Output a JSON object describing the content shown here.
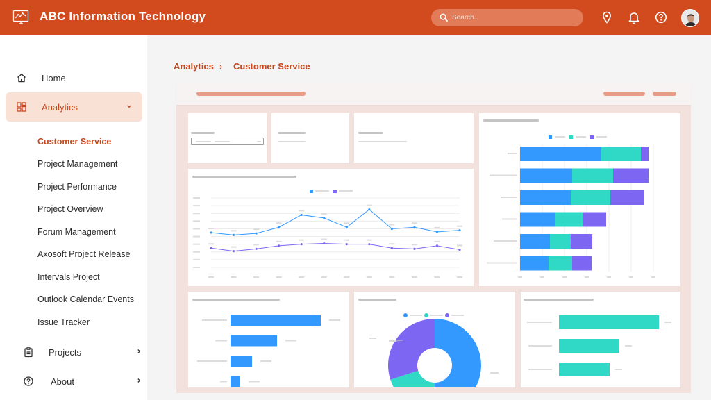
{
  "header": {
    "title": "ABC Information Technology",
    "search_placeholder": "Search..",
    "brand_color": "#d14b1f",
    "icons": [
      "location-pin-icon",
      "bell-icon",
      "help-circle-icon"
    ]
  },
  "sidebar": {
    "items": [
      {
        "label": "Home",
        "icon": "home-icon"
      },
      {
        "label": "Analytics",
        "icon": "dashboard-icon",
        "active": true
      },
      {
        "label": "Projects",
        "icon": "clipboard-icon"
      },
      {
        "label": "About",
        "icon": "help-circle-icon"
      }
    ],
    "analytics_subitems": [
      "Customer Service",
      "Project Management",
      "Project Performance",
      "Project Overview",
      "Forum Management",
      "Axosoft Project Release",
      "Intervals Project",
      "Outlook Calendar Events",
      "Issue Tracker"
    ]
  },
  "breadcrumb": {
    "parent": "Analytics",
    "separator": "›",
    "current": "Customer Service"
  },
  "chart_data": [
    {
      "type": "line",
      "series": [
        {
          "color": "#3399ff",
          "values": [
            45,
            42,
            44,
            52,
            68,
            64,
            52,
            75,
            50,
            52,
            46,
            48
          ]
        },
        {
          "color": "#7d66f2",
          "values": [
            25,
            21,
            24,
            28,
            30,
            31,
            30,
            30,
            25,
            24,
            28,
            23
          ]
        }
      ]
    },
    {
      "type": "bar",
      "orientation": "horizontal",
      "stacked": true,
      "series": [
        {
          "color": "#3399ff",
          "values": [
            117,
            75,
            73,
            51,
            43,
            41
          ]
        },
        {
          "color": "#2fd9c6",
          "values": [
            57,
            59,
            57,
            39,
            30,
            34
          ]
        },
        {
          "color": "#7d66f2",
          "values": [
            11,
            51,
            49,
            34,
            31,
            28
          ]
        }
      ]
    },
    {
      "type": "bar",
      "orientation": "horizontal",
      "series": [
        {
          "color": "#3399ff",
          "values": [
            130,
            67,
            31,
            14
          ]
        }
      ]
    },
    {
      "type": "pie",
      "donut": true,
      "series": [
        {
          "color": "#3399ff",
          "value": 50
        },
        {
          "color": "#2fd9c6",
          "value": 20
        },
        {
          "color": "#7d66f2",
          "value": 30
        }
      ]
    },
    {
      "type": "bar",
      "orientation": "horizontal",
      "series": [
        {
          "color": "#2fd9c6",
          "values": [
            144,
            87,
            73
          ]
        }
      ]
    }
  ]
}
